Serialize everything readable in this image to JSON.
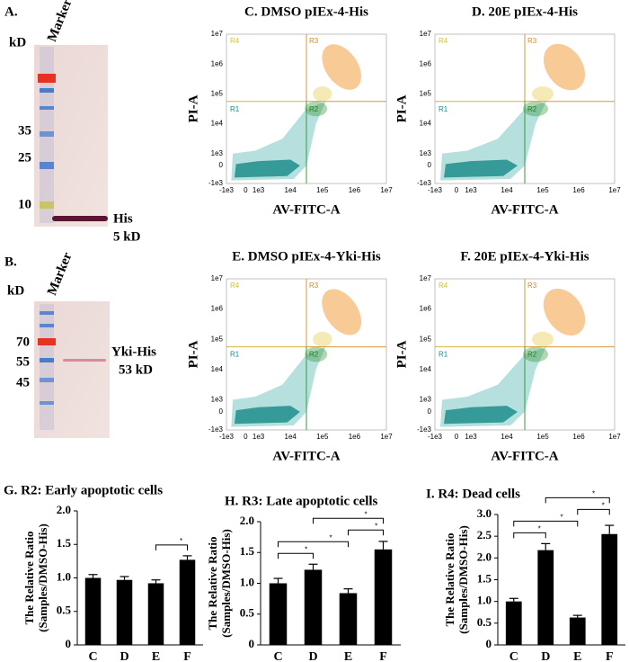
{
  "blots": [
    {
      "label": "A.",
      "unit": "kD",
      "marker": "Marker",
      "ladder": [
        "35",
        "25",
        "10"
      ],
      "band": "His",
      "band_size": "5 kD"
    },
    {
      "label": "B.",
      "unit": "kD",
      "marker": "Marker",
      "ladder": [
        "70",
        "55",
        "45"
      ],
      "band": "Yki-His",
      "band_size": "53 kD"
    }
  ],
  "flow_plots": [
    {
      "title": "C. DMSO pIEx-4-His"
    },
    {
      "title": "D. 20E pIEx-4-His"
    },
    {
      "title": "E. DMSO pIEx-4-Yki-His"
    },
    {
      "title": "F. 20E pIEx-4-Yki-His"
    }
  ],
  "flow_axes": {
    "x_label": "AV-FITC-A",
    "y_label": "PI-A",
    "ticks": [
      "-1e3",
      "0",
      "1e3",
      "1e4",
      "1e5",
      "1e6",
      "1e7"
    ],
    "regions": [
      "R1",
      "R2",
      "R3",
      "R4"
    ]
  },
  "chart_data": [
    {
      "type": "bar",
      "title": "G. R2: Early apoptotic cells",
      "y_label": [
        "The Relative Ratio",
        "(Samples/DMSO-His)"
      ],
      "categories": [
        "C",
        "D",
        "E",
        "F"
      ],
      "values": [
        1.0,
        0.97,
        0.92,
        1.27
      ],
      "errors": [
        0.05,
        0.05,
        0.05,
        0.06
      ],
      "color": "#000000",
      "ylim": [
        0,
        2
      ],
      "yticks": [
        0,
        {
          "value": 0.5,
          "label": "0.5"
        },
        {
          "value": 1,
          "label": "1.0"
        },
        {
          "value": 1.5,
          "label": "1.5"
        },
        {
          "value": 2,
          "label": "2.0"
        }
      ],
      "significance": [
        {
          "between": [
            "E",
            "F"
          ],
          "label": "*"
        }
      ]
    },
    {
      "type": "bar",
      "title": "H. R3: Late apoptotic cells",
      "y_label": [
        "The Relative Ratio",
        "(Samples/DMSO-His)"
      ],
      "categories": [
        "C",
        "D",
        "E",
        "F"
      ],
      "values": [
        1.0,
        1.22,
        0.84,
        1.55
      ],
      "errors": [
        0.08,
        0.09,
        0.07,
        0.13
      ],
      "color": "#000000",
      "ylim": [
        0,
        2
      ],
      "yticks": [
        0,
        {
          "value": 0.5,
          "label": "0.5"
        },
        {
          "value": 1,
          "label": "1.0"
        },
        {
          "value": 1.5,
          "label": "1.5"
        },
        {
          "value": 2,
          "label": "2.0"
        }
      ],
      "significance": [
        {
          "between": [
            "C",
            "D"
          ],
          "label": "*"
        },
        {
          "between": [
            "C",
            "E"
          ],
          "label": "*"
        },
        {
          "between": [
            "E",
            "F"
          ],
          "label": "*"
        },
        {
          "between": [
            "D",
            "F"
          ],
          "label": "*"
        }
      ]
    },
    {
      "type": "bar",
      "title": "I. R4: Dead cells",
      "y_label": [
        "The Relative Ratio",
        "(Samples/DMSO-His)"
      ],
      "categories": [
        "C",
        "D",
        "E",
        "F"
      ],
      "values": [
        1.0,
        2.18,
        0.63,
        2.55
      ],
      "errors": [
        0.07,
        0.15,
        0.05,
        0.2
      ],
      "color": "#000000",
      "ylim": [
        0,
        3
      ],
      "yticks": [
        0,
        {
          "value": 0.5,
          "label": "0.5"
        },
        {
          "value": 1,
          "label": "1.0"
        },
        {
          "value": 1.5,
          "label": "1.5"
        },
        {
          "value": 2,
          "label": "2.0"
        },
        {
          "value": 2.5,
          "label": "2.5"
        },
        {
          "value": 3,
          "label": "3.0"
        }
      ],
      "significance": [
        {
          "between": [
            "C",
            "D"
          ],
          "label": "*"
        },
        {
          "between": [
            "C",
            "E"
          ],
          "label": "*"
        },
        {
          "between": [
            "E",
            "F"
          ],
          "label": "*"
        },
        {
          "between": [
            "D",
            "F"
          ],
          "label": "*"
        }
      ]
    }
  ]
}
